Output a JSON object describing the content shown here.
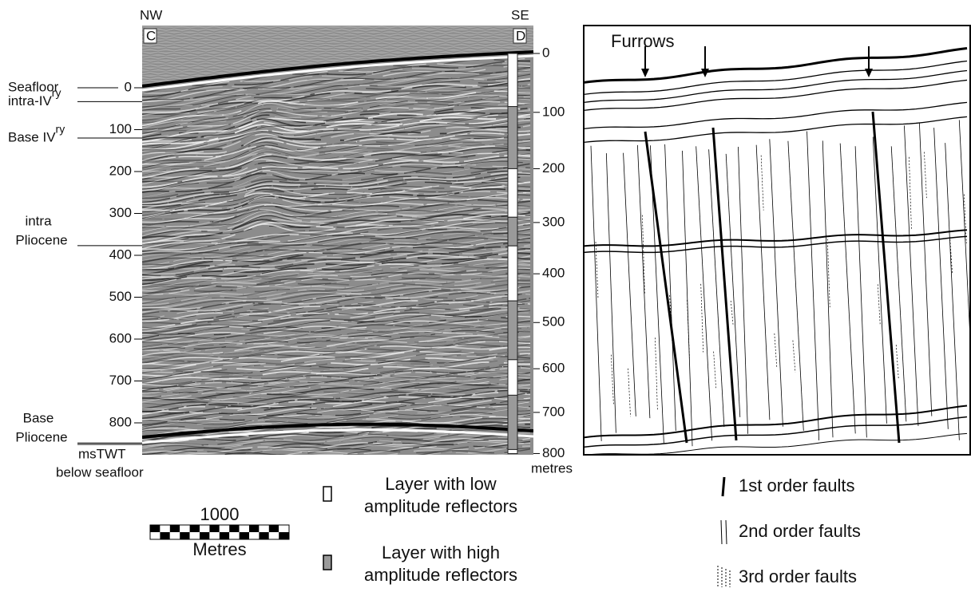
{
  "section": {
    "left_end": "NW",
    "right_end": "SE",
    "left_point": "C",
    "right_point": "D"
  },
  "annotations": [
    {
      "lines": [
        "Seafloor"
      ],
      "time": 0
    },
    {
      "lines": [
        "intra-IV"
      ],
      "sup": "ry",
      "time": 33
    },
    {
      "lines": [
        "Base IV"
      ],
      "sup": "ry",
      "time": 120
    },
    {
      "lines": [
        "intra",
        "Pliocene"
      ],
      "time": 377
    },
    {
      "lines": [
        "Base",
        "Pliocene"
      ],
      "time": 848
    }
  ],
  "twt_scale": {
    "ticks": [
      0,
      100,
      200,
      300,
      400,
      500,
      600,
      700,
      800
    ],
    "unit": [
      "msTWT",
      "below seafloor"
    ]
  },
  "depth_scale": {
    "ticks": [
      0,
      100,
      200,
      300,
      400,
      500,
      600,
      700,
      800
    ],
    "unit": "metres"
  },
  "interpretation": {
    "label": "Furrows"
  },
  "scale_bar": {
    "length": 1000,
    "unit": "Metres"
  },
  "layer_legend": [
    {
      "lines": [
        "Layer with low",
        "amplitude reflectors"
      ],
      "color": "#ffffff"
    },
    {
      "lines": [
        "Layer with high",
        "amplitude reflectors"
      ],
      "color": "#9a9a9a"
    }
  ],
  "fault_legend": [
    "1st order faults",
    "2nd order faults",
    "3rd order faults"
  ]
}
